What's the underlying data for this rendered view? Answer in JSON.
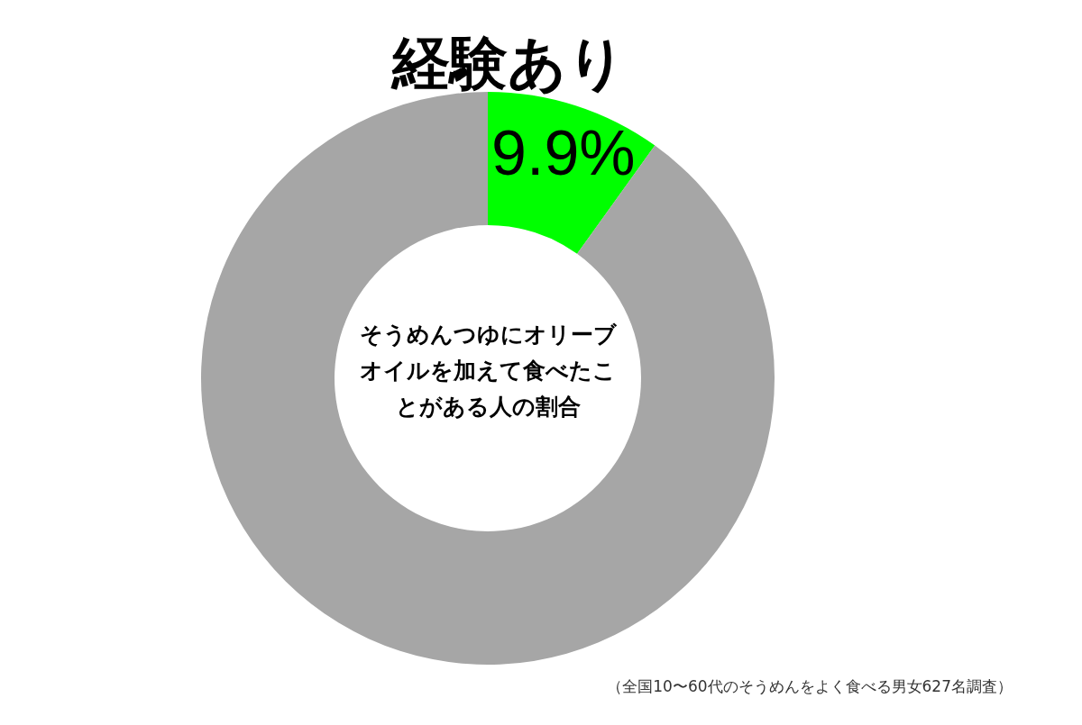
{
  "chart_data": {
    "type": "donut",
    "title": "そうめんつゆにオリーブオイルを加えて食べたことがある人の割合",
    "categories": [
      "経験あり",
      null
    ],
    "values": [
      9.9,
      90.1
    ],
    "colors": [
      "#00ff00",
      "#a6a6a6"
    ],
    "value_labels": [
      "9.9%",
      null
    ],
    "annotations": [
      "（全国10〜60代のそうめんをよく食べる男女627名調査）"
    ]
  }
}
